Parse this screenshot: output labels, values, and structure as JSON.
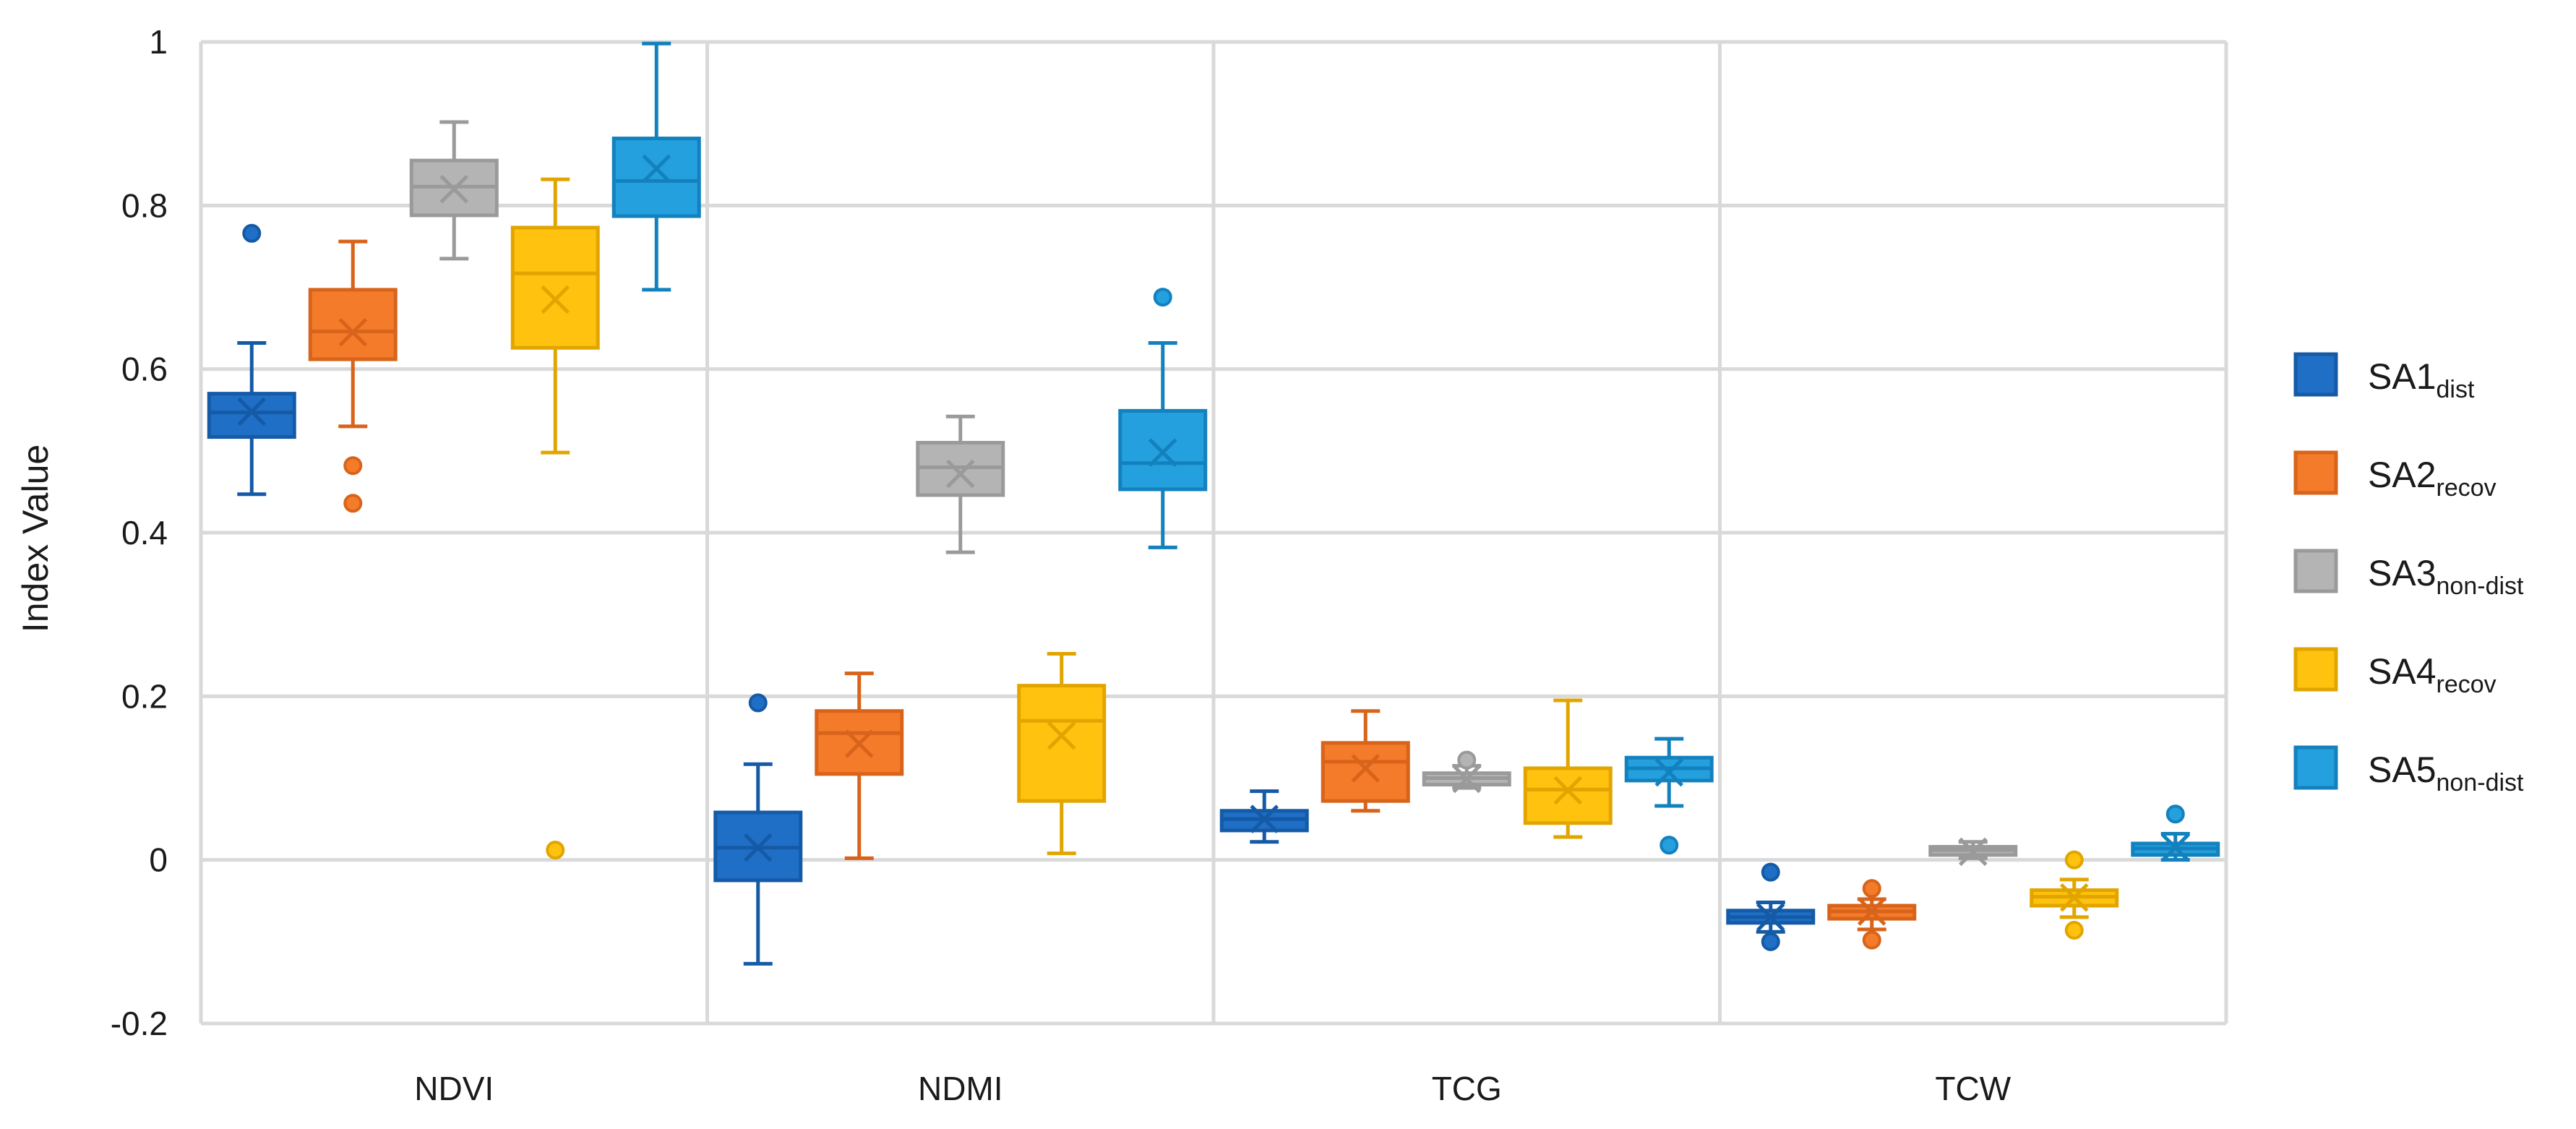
{
  "chart_data": {
    "type": "box",
    "title": "",
    "xlabel": "",
    "ylabel": "Index Value",
    "ylim": [
      -0.2,
      1
    ],
    "yticks": [
      -0.2,
      0,
      0.2,
      0.4,
      0.6,
      0.8,
      1
    ],
    "ytick_labels": [
      "-0.2",
      "0",
      "0.2",
      "0.4",
      "0.6",
      "0.8",
      "1"
    ],
    "grid": true,
    "legend_position": "right",
    "categories": [
      "NDVI",
      "NDMI",
      "TCG",
      "TCW"
    ],
    "series": [
      {
        "name": "SA1",
        "sub": "dist",
        "color": "#1f6fc6",
        "edge": "#155aa6",
        "boxes": [
          {
            "whislo": 0.447,
            "q1": 0.517,
            "med": 0.547,
            "mean": 0.548,
            "q3": 0.57,
            "whishi": 0.632,
            "fliers": [
              0.766
            ]
          },
          {
            "whislo": -0.127,
            "q1": -0.025,
            "med": 0.015,
            "mean": 0.015,
            "q3": 0.058,
            "whishi": 0.117,
            "fliers": [
              0.192
            ]
          },
          {
            "whislo": 0.022,
            "q1": 0.036,
            "med": 0.05,
            "mean": 0.05,
            "q3": 0.06,
            "whishi": 0.084,
            "fliers": []
          },
          {
            "whislo": -0.088,
            "q1": -0.077,
            "med": -0.07,
            "mean": -0.07,
            "q3": -0.062,
            "whishi": -0.052,
            "fliers": [
              -0.015,
              -0.1
            ]
          }
        ]
      },
      {
        "name": "SA2",
        "sub": "recov",
        "color": "#f47b2a",
        "edge": "#d8631a",
        "boxes": [
          {
            "whislo": 0.53,
            "q1": 0.612,
            "med": 0.646,
            "mean": 0.645,
            "q3": 0.697,
            "whishi": 0.756,
            "fliers": [
              0.482,
              0.436
            ]
          },
          {
            "whislo": 0.002,
            "q1": 0.105,
            "med": 0.155,
            "mean": 0.142,
            "q3": 0.182,
            "whishi": 0.228,
            "fliers": []
          },
          {
            "whislo": 0.06,
            "q1": 0.072,
            "med": 0.12,
            "mean": 0.112,
            "q3": 0.143,
            "whishi": 0.182,
            "fliers": []
          },
          {
            "whislo": -0.085,
            "q1": -0.072,
            "med": -0.063,
            "mean": -0.063,
            "q3": -0.056,
            "whishi": -0.048,
            "fliers": [
              -0.035,
              -0.098
            ]
          }
        ]
      },
      {
        "name": "SA3",
        "sub": "non-dist",
        "color": "#b4b4b4",
        "edge": "#9a9a9a",
        "boxes": [
          {
            "whislo": 0.735,
            "q1": 0.788,
            "med": 0.823,
            "mean": 0.82,
            "q3": 0.855,
            "whishi": 0.902,
            "fliers": []
          },
          {
            "whislo": 0.376,
            "q1": 0.446,
            "med": 0.48,
            "mean": 0.472,
            "q3": 0.51,
            "whishi": 0.542,
            "fliers": []
          },
          {
            "whislo": 0.088,
            "q1": 0.092,
            "med": 0.1,
            "mean": 0.099,
            "q3": 0.106,
            "whishi": 0.115,
            "fliers": [
              0.122
            ]
          },
          {
            "whislo": 0.002,
            "q1": 0.006,
            "med": 0.012,
            "mean": 0.01,
            "q3": 0.016,
            "whishi": 0.022,
            "fliers": []
          }
        ]
      },
      {
        "name": "SA4",
        "sub": "recov",
        "color": "#ffc20e",
        "edge": "#e2a500",
        "boxes": [
          {
            "whislo": 0.498,
            "q1": 0.626,
            "med": 0.717,
            "mean": 0.685,
            "q3": 0.773,
            "whishi": 0.832,
            "fliers": [
              0.012
            ]
          },
          {
            "whislo": 0.008,
            "q1": 0.072,
            "med": 0.17,
            "mean": 0.152,
            "q3": 0.213,
            "whishi": 0.252,
            "fliers": []
          },
          {
            "whislo": 0.028,
            "q1": 0.045,
            "med": 0.086,
            "mean": 0.085,
            "q3": 0.112,
            "whishi": 0.195,
            "fliers": []
          },
          {
            "whislo": -0.07,
            "q1": -0.056,
            "med": -0.045,
            "mean": -0.046,
            "q3": -0.037,
            "whishi": -0.024,
            "fliers": [
              0.0,
              -0.086
            ]
          }
        ]
      },
      {
        "name": "SA5",
        "sub": "non-dist",
        "color": "#23a0dd",
        "edge": "#1381bd",
        "boxes": [
          {
            "whislo": 0.697,
            "q1": 0.787,
            "med": 0.83,
            "mean": 0.845,
            "q3": 0.882,
            "whishi": 0.998,
            "fliers": []
          },
          {
            "whislo": 0.382,
            "q1": 0.453,
            "med": 0.485,
            "mean": 0.498,
            "q3": 0.549,
            "whishi": 0.632,
            "fliers": [
              0.688
            ]
          },
          {
            "whislo": 0.066,
            "q1": 0.097,
            "med": 0.112,
            "mean": 0.107,
            "q3": 0.125,
            "whishi": 0.148,
            "fliers": [
              0.018
            ]
          },
          {
            "whislo": 0.0,
            "q1": 0.006,
            "med": 0.014,
            "mean": 0.015,
            "q3": 0.02,
            "whishi": 0.032,
            "fliers": [
              0.056
            ]
          }
        ]
      }
    ]
  }
}
